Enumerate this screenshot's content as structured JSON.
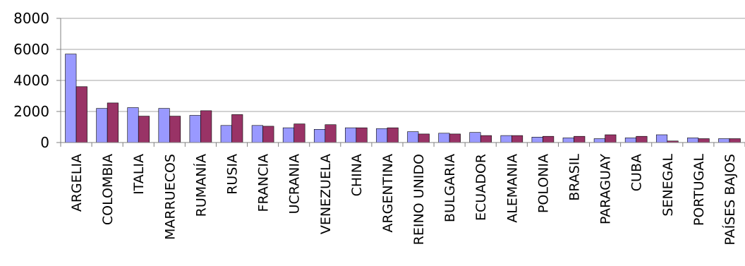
{
  "chart_data": {
    "type": "bar",
    "categories": [
      "ARGELIA",
      "COLOMBIA",
      "ITALIA",
      "MARRUECOS",
      "RUMANÍA",
      "RUSIA",
      "FRANCIA",
      "UCRANIA",
      "VENEZUELA",
      "CHINA",
      "ARGENTINA",
      "REINO UNIDO",
      "BULGARIA",
      "ECUADOR",
      "ALEMANIA",
      "POLONIA",
      "BRASIL",
      "PARAGUAY",
      "CUBA",
      "SENEGAL",
      "PORTUGAL",
      "PAÍSES BAJOS"
    ],
    "series": [
      {
        "color": "#9999ff",
        "values": [
          5700,
          2200,
          2250,
          2200,
          1750,
          1100,
          1100,
          950,
          850,
          950,
          900,
          700,
          600,
          650,
          450,
          350,
          300,
          250,
          300,
          500,
          300,
          250
        ]
      },
      {
        "color": "#993366",
        "values": [
          3600,
          2550,
          1700,
          1700,
          2050,
          1800,
          1050,
          1200,
          1150,
          950,
          950,
          550,
          550,
          450,
          450,
          400,
          400,
          500,
          400,
          100,
          250,
          250
        ]
      }
    ],
    "yticks": [
      0,
      2000,
      4000,
      6000,
      8000
    ],
    "ylim": [
      0,
      8000
    ],
    "grid": true,
    "legend": "none"
  }
}
